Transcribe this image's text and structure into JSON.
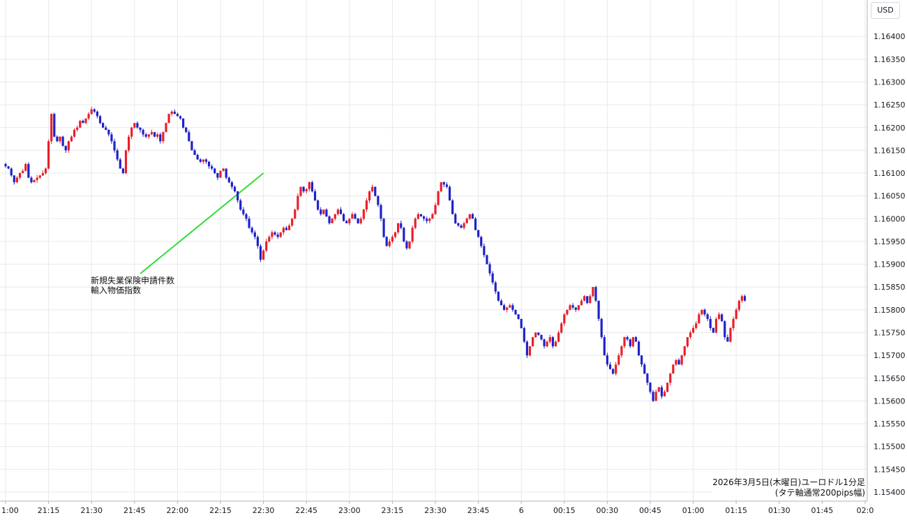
{
  "chart_data": {
    "type": "candlestick",
    "title": "2026年3月5日(木曜日)ユーロドル1分足",
    "subtitle": "(タテ軸通常200pips幅)",
    "currency": "USD",
    "ylim": [
      1.1538,
      1.1648
    ],
    "y_ticks": [
      "1.16400",
      "1.16350",
      "1.16300",
      "1.16250",
      "1.16200",
      "1.16150",
      "1.16100",
      "1.16050",
      "1.16000",
      "1.15950",
      "1.15900",
      "1.15850",
      "1.15800",
      "1.15750",
      "1.15700",
      "1.15650",
      "1.15600",
      "1.15550",
      "1.15500",
      "1.15450",
      "1.15400"
    ],
    "x_ticks": [
      "1:00",
      "21:15",
      "21:30",
      "21:45",
      "22:00",
      "22:15",
      "22:30",
      "22:45",
      "23:00",
      "23:15",
      "23:30",
      "23:45",
      "6",
      "00:15",
      "00:30",
      "00:45",
      "01:00",
      "01:15",
      "01:30",
      "01:45",
      "02:0"
    ],
    "annotation": {
      "lines": [
        "新規失業保険申請件数",
        "輸入物価指数"
      ],
      "at_time": "22:30",
      "at_price": 1.161,
      "color": "#33dd33"
    },
    "colors": {
      "up": "#e8202a",
      "down": "#1e22c8",
      "grid": "#e6e9ee",
      "axis": "#b2b5be"
    },
    "bars_per_15min": 15,
    "series": [
      {
        "values": [
          1.16115,
          1.1611,
          1.16095,
          1.1608,
          1.1609,
          1.161,
          1.16105,
          1.1612,
          1.1609,
          1.1608,
          1.16085,
          1.1609,
          1.16095,
          1.161,
          1.1611,
          1.1617,
          1.1623,
          1.1618,
          1.1617,
          1.1618,
          1.1616,
          1.1615,
          1.1617,
          1.1618,
          1.16195,
          1.162,
          1.16215,
          1.1621,
          1.1622,
          1.1623,
          1.1624,
          1.16235,
          1.16225,
          1.1621,
          1.162,
          1.16195,
          1.16185,
          1.1617,
          1.1615,
          1.1613,
          1.1611,
          1.161,
          1.1615,
          1.1618,
          1.162,
          1.1621,
          1.162,
          1.16195,
          1.16185,
          1.1618,
          1.16185,
          1.1619,
          1.1618,
          1.16185,
          1.1617,
          1.1619,
          1.1621,
          1.1623,
          1.16235,
          1.1623,
          1.16225,
          1.1622,
          1.162,
          1.1619,
          1.1617,
          1.1615,
          1.1614,
          1.1613,
          1.16125,
          1.1613,
          1.16125,
          1.16115,
          1.1611,
          1.161,
          1.1609,
          1.16105,
          1.1611,
          1.1609,
          1.1608,
          1.1607,
          1.1606,
          1.1604,
          1.1602,
          1.1601,
          1.16,
          1.1598,
          1.1597,
          1.1596,
          1.1594,
          1.1591,
          1.1593,
          1.1595,
          1.1596,
          1.1597,
          1.15965,
          1.1596,
          1.1597,
          1.1598,
          1.15975,
          1.15985,
          1.16,
          1.1602,
          1.1605,
          1.1607,
          1.1606,
          1.16065,
          1.1608,
          1.1606,
          1.1604,
          1.1602,
          1.1601,
          1.1602,
          1.16005,
          1.1599,
          1.16,
          1.1601,
          1.1602,
          1.1601,
          1.15995,
          1.1599,
          1.16,
          1.1601,
          1.16,
          1.1599,
          1.16,
          1.1602,
          1.1604,
          1.1606,
          1.1607,
          1.1605,
          1.1603,
          1.16,
          1.1596,
          1.1594,
          1.1595,
          1.1596,
          1.1597,
          1.1599,
          1.1598,
          1.1595,
          1.15935,
          1.1595,
          1.1598,
          1.16,
          1.1601,
          1.16005,
          1.16,
          1.15995,
          1.16,
          1.1601,
          1.1603,
          1.1606,
          1.1608,
          1.16075,
          1.1607,
          1.1604,
          1.1601,
          1.1599,
          1.15985,
          1.1598,
          1.1599,
          1.16,
          1.1601,
          1.16,
          1.15975,
          1.1596,
          1.1594,
          1.1592,
          1.159,
          1.1588,
          1.1586,
          1.1584,
          1.1582,
          1.1581,
          1.158,
          1.15805,
          1.1581,
          1.158,
          1.1579,
          1.1578,
          1.1576,
          1.1573,
          1.157,
          1.1572,
          1.1574,
          1.1575,
          1.15745,
          1.15735,
          1.1572,
          1.1573,
          1.1574,
          1.1572,
          1.1573,
          1.1575,
          1.1577,
          1.1579,
          1.158,
          1.1581,
          1.15805,
          1.158,
          1.1581,
          1.1582,
          1.1583,
          1.15815,
          1.1583,
          1.1585,
          1.1582,
          1.1578,
          1.1574,
          1.157,
          1.1568,
          1.1567,
          1.1566,
          1.1568,
          1.157,
          1.1572,
          1.1574,
          1.15735,
          1.1572,
          1.1574,
          1.1573,
          1.157,
          1.1568,
          1.1566,
          1.1564,
          1.1562,
          1.156,
          1.1562,
          1.1563,
          1.1561,
          1.1562,
          1.1564,
          1.1566,
          1.1568,
          1.1569,
          1.1568,
          1.157,
          1.1572,
          1.1574,
          1.1575,
          1.1576,
          1.1577,
          1.1579,
          1.158,
          1.1579,
          1.1578,
          1.1576,
          1.1575,
          1.1578,
          1.1579,
          1.15775,
          1.1574,
          1.1573,
          1.1576,
          1.1578,
          1.158,
          1.1582,
          1.1583,
          1.1582
        ]
      }
    ]
  }
}
